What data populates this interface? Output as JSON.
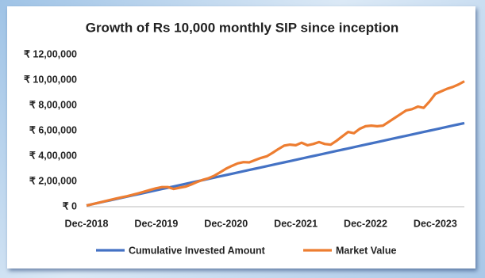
{
  "chart_data": {
    "type": "line",
    "title": "Growth of Rs 10,000 monthly SIP since inception",
    "categories": [
      "Dec-2018",
      null,
      null,
      null,
      null,
      null,
      null,
      null,
      null,
      null,
      null,
      null,
      "Dec-2019",
      null,
      null,
      null,
      null,
      null,
      null,
      null,
      null,
      null,
      null,
      null,
      "Dec-2020",
      null,
      null,
      null,
      null,
      null,
      null,
      null,
      null,
      null,
      null,
      null,
      "Dec-2021",
      null,
      null,
      null,
      null,
      null,
      null,
      null,
      null,
      null,
      null,
      null,
      "Dec-2022",
      null,
      null,
      null,
      null,
      null,
      null,
      null,
      null,
      null,
      null,
      null,
      "Dec-2023",
      null,
      null,
      null,
      null,
      null
    ],
    "series": [
      {
        "name": "Cumulative Invested Amount",
        "color": "#4472c4",
        "values": [
          10000,
          20000,
          30000,
          40000,
          50000,
          60000,
          70000,
          80000,
          90000,
          100000,
          110000,
          120000,
          130000,
          140000,
          150000,
          160000,
          170000,
          180000,
          190000,
          200000,
          210000,
          220000,
          230000,
          240000,
          250000,
          260000,
          270000,
          280000,
          290000,
          300000,
          310000,
          320000,
          330000,
          340000,
          350000,
          360000,
          370000,
          380000,
          390000,
          400000,
          410000,
          420000,
          430000,
          440000,
          450000,
          460000,
          470000,
          480000,
          490000,
          500000,
          510000,
          520000,
          530000,
          540000,
          550000,
          560000,
          570000,
          580000,
          590000,
          600000,
          610000,
          620000,
          630000,
          640000,
          650000,
          660000
        ]
      },
      {
        "name": "Market Value",
        "color": "#ed7d31",
        "values": [
          10000,
          20000,
          30500,
          42000,
          53000,
          64000,
          74000,
          83000,
          95000,
          107000,
          120000,
          133000,
          146000,
          155000,
          155000,
          140000,
          150000,
          158000,
          175000,
          195000,
          212000,
          225000,
          245000,
          272000,
          300000,
          322000,
          342000,
          352000,
          350000,
          368000,
          385000,
          398000,
          425000,
          455000,
          482000,
          490000,
          485000,
          505000,
          485000,
          495000,
          510000,
          495000,
          490000,
          520000,
          555000,
          590000,
          580000,
          615000,
          635000,
          640000,
          635000,
          640000,
          670000,
          700000,
          730000,
          760000,
          770000,
          790000,
          780000,
          830000,
          890000,
          910000,
          930000,
          945000,
          965000,
          990000
        ]
      }
    ],
    "ylim": [
      0,
      1200000
    ],
    "yticks": [
      {
        "value": 0,
        "label": "₹ 0"
      },
      {
        "value": 200000,
        "label": "₹ 2,00,000"
      },
      {
        "value": 400000,
        "label": "₹ 4,00,000"
      },
      {
        "value": 600000,
        "label": "₹ 6,00,000"
      },
      {
        "value": 800000,
        "label": "₹ 8,00,000"
      },
      {
        "value": 1000000,
        "label": "₹ 10,00,000"
      },
      {
        "value": 1200000,
        "label": "₹ 12,00,000"
      }
    ],
    "grid": false,
    "legend": "bottom"
  }
}
